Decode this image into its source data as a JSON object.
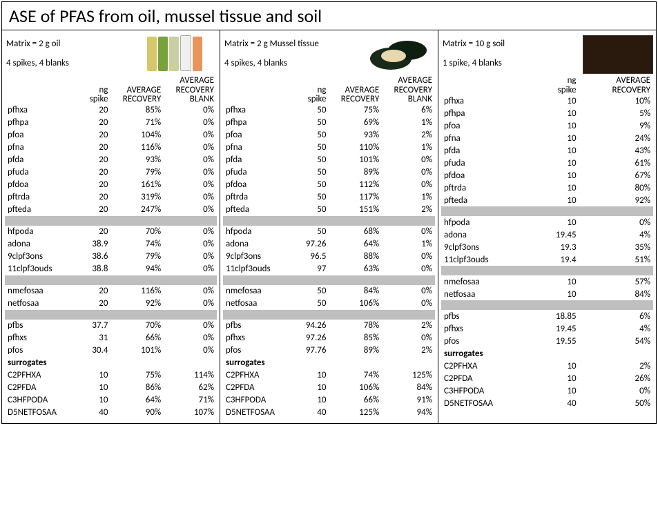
{
  "title": "ASE of PFAS from oil, mussel tissue and soil",
  "panels": [
    {
      "matrix": "Matrix = 2 g oil",
      "spikes": "4 spikes, 4 blanks",
      "illust": "bottles",
      "cols": 4,
      "headers": [
        "",
        "ng spike",
        "AVERAGE RECOVERY",
        "AVERAGE RECOVERY BLANK"
      ],
      "rows": [
        [
          "pfhxa",
          "20",
          "85%",
          "0%"
        ],
        [
          "pfhpa",
          "20",
          "71%",
          "0%"
        ],
        [
          "pfoa",
          "20",
          "104%",
          "0%"
        ],
        [
          "pfna",
          "20",
          "116%",
          "0%"
        ],
        [
          "pfda",
          "20",
          "93%",
          "0%"
        ],
        [
          "pfuda",
          "20",
          "79%",
          "0%"
        ],
        [
          "pfdoa",
          "20",
          "161%",
          "0%"
        ],
        [
          "pftrda",
          "20",
          "319%",
          "0%"
        ],
        [
          "pfteda",
          "20",
          "247%",
          "0%"
        ],
        "sep",
        [
          "hfpoda",
          "20",
          "70%",
          "0%"
        ],
        [
          "adona",
          "38.9",
          "74%",
          "0%"
        ],
        [
          "9clpf3ons",
          "38.6",
          "79%",
          "0%"
        ],
        [
          "11clpf3ouds",
          "38.8",
          "94%",
          "0%"
        ],
        "sep",
        [
          "nmefosaa",
          "20",
          "116%",
          "0%"
        ],
        [
          "netfosaa",
          "20",
          "92%",
          "0%"
        ],
        "sep",
        [
          "pfbs",
          "37.7",
          "70%",
          "0%"
        ],
        [
          "pfhxs",
          "31",
          "66%",
          "0%"
        ],
        [
          "pfos",
          "30.4",
          "101%",
          "0%"
        ],
        "sur",
        [
          "C2PFHXA",
          "10",
          "75%",
          "114%"
        ],
        [
          "C2PFDA",
          "10",
          "86%",
          "62%"
        ],
        [
          "C3HFPODA",
          "10",
          "64%",
          "71%"
        ],
        [
          "D5NETFOSAA",
          "40",
          "90%",
          "107%"
        ]
      ]
    },
    {
      "matrix": "Matrix = 2 g Mussel tissue",
      "spikes": "4 spikes, 4 blanks",
      "illust": "mussel",
      "cols": 4,
      "headers": [
        "",
        "ng spike",
        "AVERAGE RECOVERY",
        "AVERAGE RECOVERY BLANK"
      ],
      "rows": [
        [
          "pfhxa",
          "50",
          "75%",
          "6%"
        ],
        [
          "pfhpa",
          "50",
          "69%",
          "1%"
        ],
        [
          "pfoa",
          "50",
          "93%",
          "2%"
        ],
        [
          "pfna",
          "50",
          "110%",
          "1%"
        ],
        [
          "pfda",
          "50",
          "101%",
          "0%"
        ],
        [
          "pfuda",
          "50",
          "89%",
          "0%"
        ],
        [
          "pfdoa",
          "50",
          "112%",
          "0%"
        ],
        [
          "pftrda",
          "50",
          "117%",
          "1%"
        ],
        [
          "pfteda",
          "50",
          "151%",
          "2%"
        ],
        "sep",
        [
          "hfpoda",
          "50",
          "68%",
          "0%"
        ],
        [
          "adona",
          "97.26",
          "64%",
          "1%"
        ],
        [
          "9clpf3ons",
          "96.5",
          "88%",
          "0%"
        ],
        [
          "11clpf3ouds",
          "97",
          "63%",
          "0%"
        ],
        "sep",
        [
          "nmefosaa",
          "50",
          "84%",
          "0%"
        ],
        [
          "netfosaa",
          "50",
          "106%",
          "0%"
        ],
        "sep",
        [
          "pfbs",
          "94.26",
          "78%",
          "2%"
        ],
        [
          "pfhxs",
          "97.26",
          "85%",
          "0%"
        ],
        [
          "pfos",
          "97.76",
          "89%",
          "2%"
        ],
        "sur",
        [
          "C2PFHXA",
          "10",
          "74%",
          "125%"
        ],
        [
          "C2PFDA",
          "10",
          "106%",
          "84%"
        ],
        [
          "C3HFPODA",
          "10",
          "66%",
          "91%"
        ],
        [
          "D5NETFOSAA",
          "40",
          "125%",
          "94%"
        ]
      ]
    },
    {
      "matrix": "Matrix = 10 g soil",
      "spikes": "1 spike, 4 blanks",
      "illust": "soil",
      "cols": 3,
      "headers": [
        "",
        "ng spike",
        "AVERAGE RECOVERY"
      ],
      "rows": [
        [
          "pfhxa",
          "10",
          "10%"
        ],
        [
          "pfhpa",
          "10",
          "5%"
        ],
        [
          "pfoa",
          "10",
          "9%"
        ],
        [
          "pfna",
          "10",
          "24%"
        ],
        [
          "pfda",
          "10",
          "43%"
        ],
        [
          "pfuda",
          "10",
          "61%"
        ],
        [
          "pfdoa",
          "10",
          "67%"
        ],
        [
          "pftrda",
          "10",
          "80%"
        ],
        [
          "pfteda",
          "10",
          "92%"
        ],
        "sep",
        [
          "hfpoda",
          "10",
          "0%"
        ],
        [
          "adona",
          "19.45",
          "4%"
        ],
        [
          "9clpf3ons",
          "19.3",
          "35%"
        ],
        [
          "11clpf3ouds",
          "19.4",
          "51%"
        ],
        "sep",
        [
          "nmefosaa",
          "10",
          "57%"
        ],
        [
          "netfosaa",
          "10",
          "84%"
        ],
        "sep",
        [
          "pfbs",
          "18.85",
          "6%"
        ],
        [
          "pfhxs",
          "19.45",
          "4%"
        ],
        [
          "pfos",
          "19.55",
          "54%"
        ],
        "sur",
        [
          "C2PFHXA",
          "10",
          "2%"
        ],
        [
          "C2PFDA",
          "10",
          "26%"
        ],
        [
          "C3HFPODA",
          "10",
          "0%"
        ],
        [
          "D5NETFOSAA",
          "40",
          "50%"
        ]
      ]
    }
  ],
  "surrogates_label": "surrogates",
  "widths4": [
    "31%",
    "19%",
    "25%",
    "25%"
  ],
  "widths3": [
    "40%",
    "25%",
    "35%"
  ]
}
